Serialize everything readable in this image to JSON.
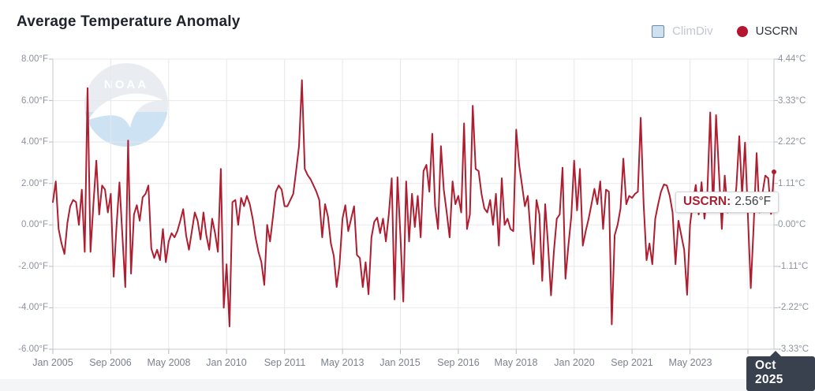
{
  "header": {
    "title": "Average Temperature Anomaly"
  },
  "legend": {
    "items": [
      {
        "label": "ClimDiv",
        "shape": "square",
        "fill": "#cfe0ee",
        "border": "#6b8ba4",
        "disabled": true
      },
      {
        "label": "USCRN",
        "shape": "circle",
        "fill": "#b5152e",
        "disabled": false
      }
    ]
  },
  "watermark": {
    "text": "NOAA"
  },
  "tooltip": {
    "series_label": "USCRN:",
    "value": "2.56°F"
  },
  "x_cursor_label": {
    "text": "Oct 2025"
  },
  "colors": {
    "series_line": "#ae1e30",
    "grid": "#e7e8ea",
    "axis": "#c6c9ce",
    "tick": "#b6bac0"
  },
  "chart_data": {
    "type": "line",
    "title": "Average Temperature Anomaly",
    "x_start": "Jan 2005",
    "x_end": "Oct 2025",
    "x_interval": "monthly",
    "unit_left": "°F",
    "unit_right": "°C",
    "ylim": [
      -6,
      8
    ],
    "grid": true,
    "legend_position": "top-right",
    "y_ticks": [
      {
        "f": 8,
        "left": "8.00°F",
        "right": "4.44°C"
      },
      {
        "f": 6,
        "left": "6.00°F",
        "right": "3.33°C"
      },
      {
        "f": 4,
        "left": "4.00°F",
        "right": "2.22°C"
      },
      {
        "f": 2,
        "left": "2.00°F",
        "right": "1.11°C"
      },
      {
        "f": 0,
        "left": "0.00°F",
        "right": "0.00°C"
      },
      {
        "f": -2,
        "left": "-2.00°F",
        "right": "-1.11°C"
      },
      {
        "f": -4,
        "left": "-4.00°F",
        "right": "-2.22°C"
      },
      {
        "f": -6,
        "left": "-6.00°F",
        "right": "-3.33°C"
      }
    ],
    "x_ticks": [
      {
        "m": 0,
        "label": "Jan 2005"
      },
      {
        "m": 20,
        "label": "Sep 2006"
      },
      {
        "m": 40,
        "label": "May 2008"
      },
      {
        "m": 60,
        "label": "Jan 2010"
      },
      {
        "m": 80,
        "label": "Sep 2011"
      },
      {
        "m": 100,
        "label": "May 2013"
      },
      {
        "m": 120,
        "label": "Jan 2015"
      },
      {
        "m": 140,
        "label": "Sep 2016"
      },
      {
        "m": 160,
        "label": "May 2018"
      },
      {
        "m": 180,
        "label": "Jan 2020"
      },
      {
        "m": 200,
        "label": "Sep 2021"
      },
      {
        "m": 220,
        "label": "May 2023"
      },
      {
        "m": 240,
        "label": ""
      }
    ],
    "hovered_point": {
      "x": "Oct 2025",
      "series": "USCRN",
      "value_f": 2.56
    },
    "series": [
      {
        "name": "USCRN",
        "color": "#ae1e30",
        "values_f": [
          1.1,
          2.1,
          -0.2,
          -0.9,
          -1.4,
          0.1,
          0.9,
          1.2,
          1.1,
          0.0,
          1.7,
          -1.3,
          6.6,
          -1.3,
          1.0,
          3.1,
          0.5,
          1.9,
          1.7,
          0.6,
          1.5,
          -2.5,
          0.0,
          2.05,
          -0.5,
          -3.0,
          4.07,
          -2.35,
          0.5,
          0.95,
          0.2,
          1.33,
          1.5,
          1.9,
          -1.14,
          -1.6,
          -1.2,
          -1.7,
          -0.2,
          -1.8,
          -0.8,
          -0.4,
          -0.6,
          -0.3,
          0.2,
          0.76,
          -0.5,
          -1.2,
          -0.3,
          0.6,
          0.2,
          -0.7,
          0.6,
          -0.5,
          -1.2,
          0.3,
          -0.4,
          -1.3,
          2.7,
          -4.0,
          -1.9,
          -4.9,
          1.1,
          1.2,
          0.0,
          1.3,
          0.9,
          1.4,
          1.0,
          0.3,
          -0.6,
          -1.3,
          -1.8,
          -2.9,
          0.0,
          -0.8,
          0.4,
          1.6,
          1.9,
          1.7,
          0.9,
          0.9,
          1.2,
          1.5,
          2.6,
          3.8,
          6.98,
          2.7,
          2.4,
          2.2,
          1.9,
          1.6,
          1.2,
          -0.6,
          1.0,
          0.4,
          -0.9,
          -1.5,
          -3.0,
          -1.9,
          0.3,
          0.95,
          -0.3,
          0.3,
          0.9,
          -1.45,
          -1.6,
          -3.0,
          -1.8,
          -3.35,
          -0.6,
          0.15,
          0.35,
          -0.4,
          0.3,
          -0.8,
          0.5,
          2.25,
          -3.6,
          2.3,
          -0.5,
          -3.7,
          2.1,
          -0.8,
          1.5,
          -0.1,
          1.4,
          -0.6,
          2.6,
          2.9,
          1.6,
          4.4,
          0.9,
          -0.2,
          3.8,
          1.7,
          0.6,
          -0.6,
          2.1,
          1.0,
          1.4,
          0.6,
          4.9,
          -0.2,
          0.5,
          5.75,
          2.7,
          2.6,
          1.5,
          0.8,
          0.6,
          1.2,
          0.0,
          1.5,
          -1.0,
          2.25,
          0.0,
          0.3,
          -0.2,
          -0.3,
          4.6,
          2.9,
          1.9,
          0.9,
          1.4,
          -0.5,
          -1.9,
          1.2,
          0.5,
          -2.7,
          1.0,
          -1.0,
          -3.4,
          -1.3,
          0.3,
          0.5,
          2.76,
          -2.6,
          -1.0,
          0.4,
          3.1,
          0.7,
          2.7,
          -1.0,
          -0.3,
          0.3,
          1.0,
          1.74,
          1.0,
          2.1,
          -0.2,
          1.7,
          1.6,
          -4.8,
          -0.5,
          0.0,
          0.8,
          3.2,
          1.0,
          1.4,
          1.3,
          1.5,
          1.6,
          5.17,
          1.0,
          -1.7,
          -0.9,
          -1.9,
          0.3,
          1.0,
          1.6,
          1.95,
          1.9,
          1.4,
          0.6,
          -1.9,
          0.2,
          -0.5,
          -1.2,
          -3.37,
          0.0,
          1.1,
          1.93,
          0.5,
          2.06,
          0.3,
          1.6,
          5.43,
          0.66,
          5.3,
          2.5,
          -0.2,
          2.38,
          0.6,
          1.1,
          0.66,
          1.8,
          4.28,
          1.42,
          3.97,
          0.4,
          -3.05,
          0.0,
          3.46,
          0.6,
          1.5,
          2.38,
          2.25,
          0.53,
          2.56
        ]
      }
    ]
  }
}
